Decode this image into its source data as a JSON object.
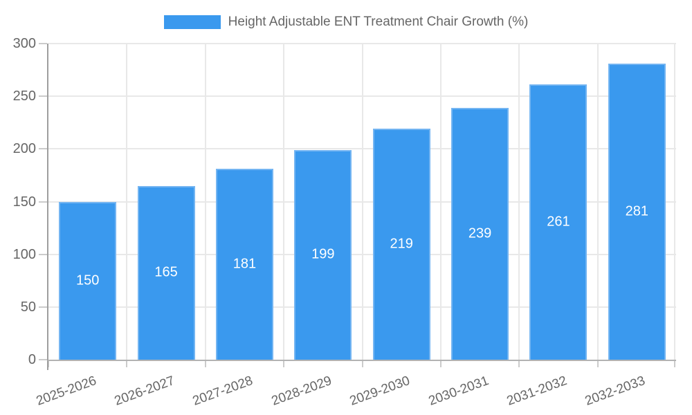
{
  "chart_data": {
    "type": "bar",
    "title": "Height Adjustable ENT Treatment Chair Growth (%)",
    "categories": [
      "2025-2026",
      "2026-2027",
      "2027-2028",
      "2028-2029",
      "2029-2030",
      "2030-2031",
      "2031-2032",
      "2032-2033"
    ],
    "values": [
      150,
      165,
      181,
      199,
      219,
      239,
      261,
      281
    ],
    "xlabel": "",
    "ylabel": "",
    "ylim": [
      0,
      300
    ],
    "yticks": [
      0,
      50,
      100,
      150,
      200,
      250,
      300
    ],
    "grid": true,
    "legend_position": "top",
    "legend_label": "Height Adjustable ENT Treatment Chair Growth (%)",
    "x_label_rotation_deg": -20,
    "colors": {
      "bar_fill": "#3a99ee",
      "bar_border": "#74b5f2",
      "value_label": "#ffffff",
      "axis_text": "#666666",
      "gridline": "#e8e8e8",
      "y_axis_line": "#9e9e9e",
      "x_axis_line": "#b2b2b2"
    }
  }
}
